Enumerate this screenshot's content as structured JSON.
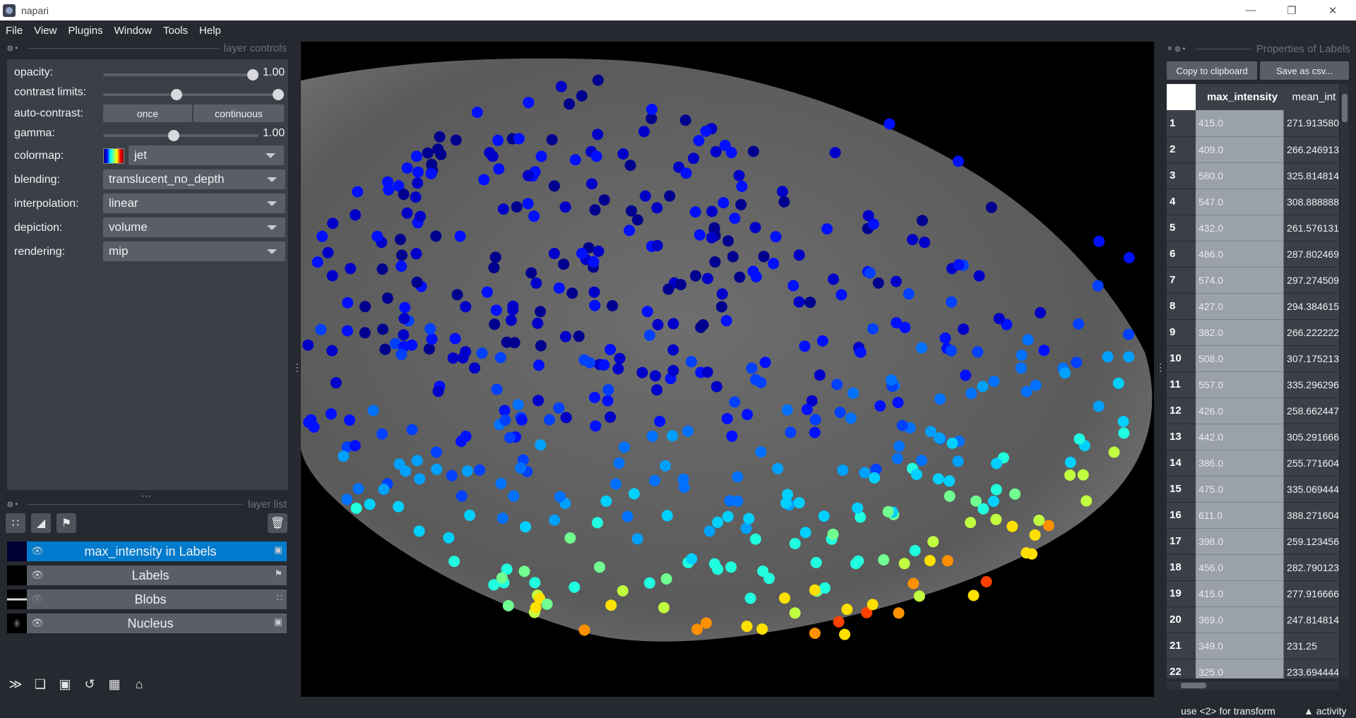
{
  "window": {
    "title": "napari"
  },
  "menu": [
    "File",
    "View",
    "Plugins",
    "Window",
    "Tools",
    "Help"
  ],
  "layer_controls": {
    "header": "layer controls",
    "opacity_label": "opacity:",
    "opacity_value": "1.00",
    "opacity_level": 1.0,
    "contrast_label": "contrast limits:",
    "autocontrast_label": "auto-contrast:",
    "once_label": "once",
    "continuous_label": "continuous",
    "gamma_label": "gamma:",
    "gamma_value": "1.00",
    "gamma_level": 0.45,
    "colormap_label": "colormap:",
    "colormap_value": "jet",
    "blending_label": "blending:",
    "blending_value": "translucent_no_depth",
    "interpolation_label": "interpolation:",
    "interpolation_value": "linear",
    "depiction_label": "depiction:",
    "depiction_value": "volume",
    "rendering_label": "rendering:",
    "rendering_value": "mip"
  },
  "layer_list": {
    "header": "layer list",
    "layers": [
      {
        "name": "max_intensity in Labels",
        "selected": true,
        "visible": true,
        "type_icon": "image-icon"
      },
      {
        "name": "Labels",
        "selected": false,
        "visible": true,
        "type_icon": "labels-icon"
      },
      {
        "name": "Blobs",
        "selected": false,
        "visible": false,
        "type_icon": "points-icon"
      },
      {
        "name": "Nucleus",
        "selected": false,
        "visible": true,
        "type_icon": "image-icon"
      }
    ]
  },
  "properties": {
    "header": "Properties of Labels",
    "copy_label": "Copy to clipboard",
    "save_label": "Save as csv...",
    "columns": [
      "max_intensity",
      "mean_int"
    ],
    "rows": [
      [
        "1",
        "415.0",
        "271.913580"
      ],
      [
        "2",
        "409.0",
        "266.246913"
      ],
      [
        "3",
        "580.0",
        "325.814814"
      ],
      [
        "4",
        "547.0",
        "308.888888"
      ],
      [
        "5",
        "432.0",
        "261.576131"
      ],
      [
        "6",
        "486.0",
        "287.802469"
      ],
      [
        "7",
        "574.0",
        "297.274509"
      ],
      [
        "8",
        "427.0",
        "294.384615"
      ],
      [
        "9",
        "382.0",
        "266.222222"
      ],
      [
        "10",
        "508.0",
        "307.175213"
      ],
      [
        "11",
        "557.0",
        "335.296296"
      ],
      [
        "12",
        "426.0",
        "258.662447"
      ],
      [
        "13",
        "442.0",
        "305.291666"
      ],
      [
        "14",
        "386.0",
        "255.771604"
      ],
      [
        "15",
        "475.0",
        "335.069444"
      ],
      [
        "16",
        "611.0",
        "388.271604"
      ],
      [
        "17",
        "398.0",
        "259.123456"
      ],
      [
        "18",
        "456.0",
        "282.790123"
      ],
      [
        "19",
        "415.0",
        "277.916666"
      ],
      [
        "20",
        "369.0",
        "247.814814"
      ],
      [
        "21",
        "349.0",
        "231.25"
      ],
      [
        "22",
        "325.0",
        "233.694444"
      ]
    ]
  },
  "status": {
    "hint": "use <2> for transform",
    "activity": "activity"
  }
}
